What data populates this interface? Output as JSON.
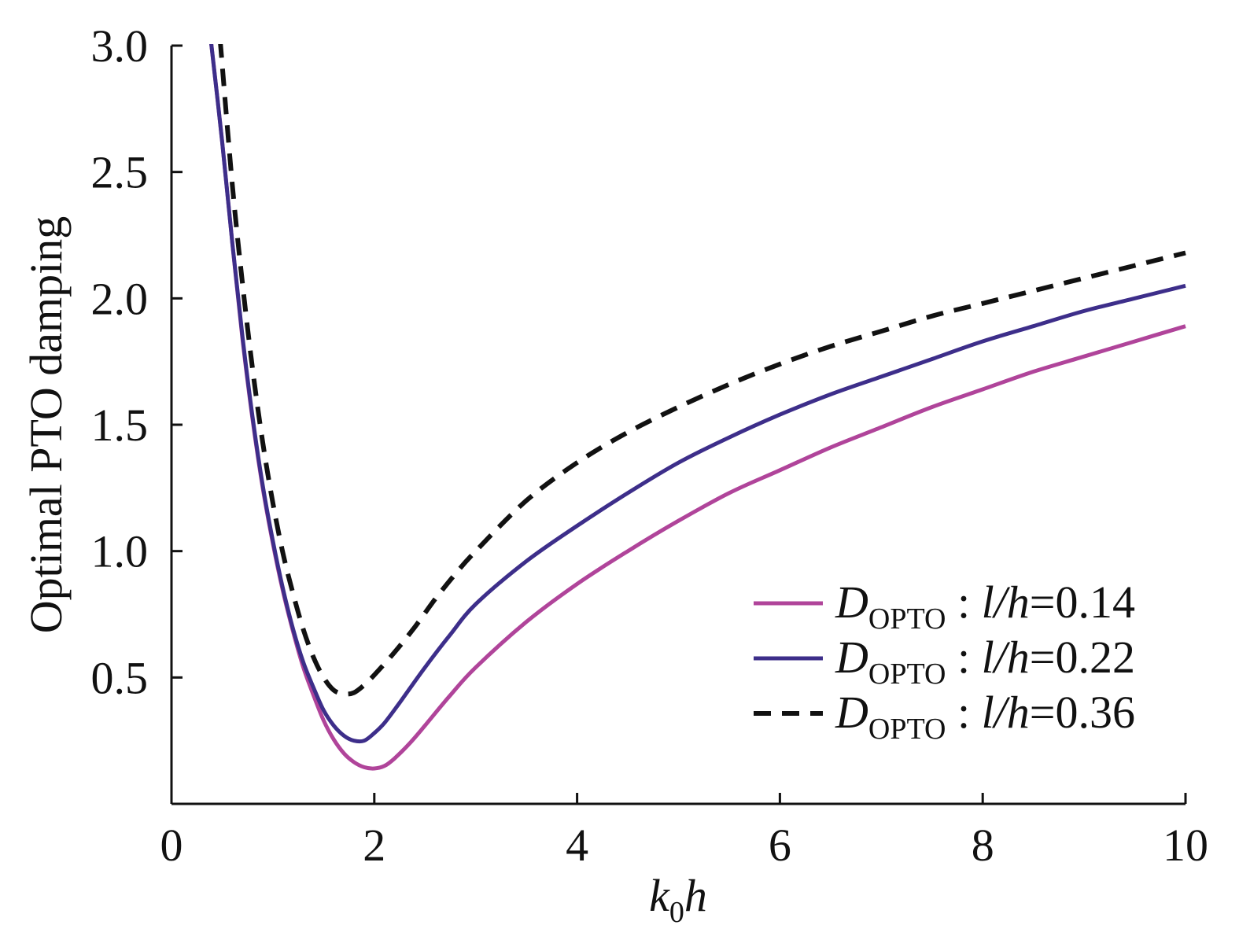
{
  "chart_data": {
    "type": "line",
    "title": "",
    "xlabel": {
      "base": "k",
      "sub": "0",
      "tail": "h"
    },
    "ylabel": "Optimal PTO damping",
    "xlim": [
      0,
      10
    ],
    "ylim": [
      0,
      3.0
    ],
    "xticks": [
      0,
      2,
      4,
      6,
      8,
      10
    ],
    "xtick_labels": [
      "0",
      "2",
      "4",
      "6",
      "8",
      "10"
    ],
    "yticks": [
      0.5,
      1.0,
      1.5,
      2.0,
      2.5,
      3.0
    ],
    "ytick_labels": [
      "0.5",
      "1.0",
      "1.5",
      "2.0",
      "2.5",
      "3.0"
    ],
    "grid": false,
    "legend_position": "bottom-right",
    "series": [
      {
        "name": "D_OPTO : l/h=0.14",
        "legend": {
          "D": "D",
          "sub": "OPTO",
          "sep": " : ",
          "ratio": "l/h",
          "eq": "=",
          "value": "0.14"
        },
        "color": "#b0449a",
        "dash": "solid",
        "x": [
          0.38,
          0.5,
          0.6,
          0.7,
          0.8,
          0.9,
          1.0,
          1.1,
          1.2,
          1.3,
          1.4,
          1.5,
          1.6,
          1.7,
          1.8,
          1.9,
          2.0,
          2.1,
          2.2,
          2.35,
          2.5,
          2.75,
          3.0,
          3.5,
          4.0,
          4.5,
          5.0,
          5.5,
          6.0,
          6.5,
          7.0,
          7.5,
          8.0,
          8.5,
          9.0,
          9.5,
          10.0
        ],
        "y": [
          3.05,
          2.62,
          2.22,
          1.84,
          1.52,
          1.25,
          1.03,
          0.84,
          0.68,
          0.54,
          0.43,
          0.33,
          0.255,
          0.2,
          0.165,
          0.145,
          0.14,
          0.15,
          0.18,
          0.24,
          0.31,
          0.43,
          0.54,
          0.72,
          0.87,
          1.0,
          1.12,
          1.23,
          1.32,
          1.41,
          1.49,
          1.57,
          1.64,
          1.71,
          1.77,
          1.83,
          1.89
        ]
      },
      {
        "name": "D_OPTO : l/h=0.22",
        "legend": {
          "D": "D",
          "sub": "OPTO",
          "sep": " : ",
          "ratio": "l/h",
          "eq": "=",
          "value": "0.22"
        },
        "color": "#3d2e8a",
        "dash": "solid",
        "x": [
          0.38,
          0.5,
          0.6,
          0.7,
          0.8,
          0.9,
          1.0,
          1.1,
          1.2,
          1.3,
          1.4,
          1.5,
          1.6,
          1.7,
          1.8,
          1.9,
          2.0,
          2.1,
          2.25,
          2.5,
          2.75,
          3.0,
          3.5,
          4.0,
          4.5,
          5.0,
          5.5,
          6.0,
          6.5,
          7.0,
          7.5,
          8.0,
          8.5,
          9.0,
          9.5,
          10.0
        ],
        "y": [
          3.05,
          2.62,
          2.22,
          1.85,
          1.53,
          1.26,
          1.04,
          0.85,
          0.69,
          0.56,
          0.46,
          0.37,
          0.31,
          0.27,
          0.25,
          0.25,
          0.28,
          0.32,
          0.4,
          0.54,
          0.67,
          0.79,
          0.96,
          1.1,
          1.23,
          1.35,
          1.45,
          1.54,
          1.62,
          1.69,
          1.76,
          1.83,
          1.89,
          1.95,
          2.0,
          2.05
        ]
      },
      {
        "name": "D_OPTO : l/h=0.36",
        "legend": {
          "D": "D",
          "sub": "OPTO",
          "sep": " : ",
          "ratio": "l/h",
          "eq": "=",
          "value": "0.36"
        },
        "color": "#111111",
        "dash": "dashed",
        "x": [
          0.48,
          0.6,
          0.7,
          0.8,
          0.9,
          1.0,
          1.1,
          1.2,
          1.3,
          1.4,
          1.5,
          1.6,
          1.7,
          1.8,
          1.9,
          2.0,
          2.2,
          2.4,
          2.6,
          2.8,
          3.0,
          3.5,
          4.0,
          4.5,
          5.0,
          5.5,
          6.0,
          6.5,
          7.0,
          7.5,
          8.0,
          8.5,
          9.0,
          9.5,
          10.0
        ],
        "y": [
          3.02,
          2.45,
          2.06,
          1.72,
          1.43,
          1.19,
          0.99,
          0.83,
          0.69,
          0.58,
          0.5,
          0.45,
          0.435,
          0.44,
          0.47,
          0.51,
          0.6,
          0.7,
          0.81,
          0.91,
          1.0,
          1.2,
          1.35,
          1.47,
          1.57,
          1.66,
          1.74,
          1.81,
          1.87,
          1.93,
          1.98,
          2.03,
          2.08,
          2.13,
          2.18
        ]
      }
    ]
  }
}
